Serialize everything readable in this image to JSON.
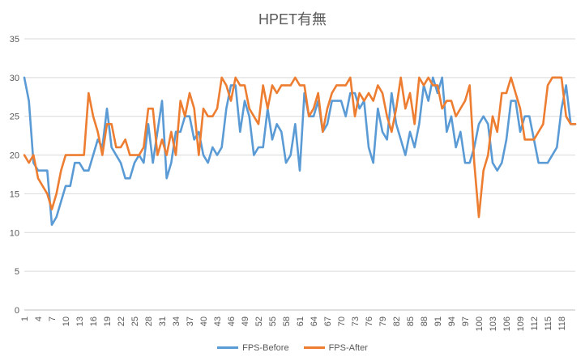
{
  "chart_data": {
    "type": "line",
    "title": "HPET有無",
    "ylim": [
      0,
      35
    ],
    "yticks": [
      0,
      5,
      10,
      15,
      20,
      25,
      30,
      35
    ],
    "x": [
      1,
      2,
      3,
      4,
      5,
      6,
      7,
      8,
      9,
      10,
      11,
      12,
      13,
      14,
      15,
      16,
      17,
      18,
      19,
      20,
      21,
      22,
      23,
      24,
      25,
      26,
      27,
      28,
      29,
      30,
      31,
      32,
      33,
      34,
      35,
      36,
      37,
      38,
      39,
      40,
      41,
      42,
      43,
      44,
      45,
      46,
      47,
      48,
      49,
      50,
      51,
      52,
      53,
      54,
      55,
      56,
      57,
      58,
      59,
      60,
      61,
      62,
      63,
      64,
      65,
      66,
      67,
      68,
      69,
      70,
      71,
      72,
      73,
      74,
      75,
      76,
      77,
      78,
      79,
      80,
      81,
      82,
      83,
      84,
      85,
      86,
      87,
      88,
      89,
      90,
      91,
      92,
      93,
      94,
      95,
      96,
      97,
      98,
      99,
      100,
      101,
      102,
      103,
      104,
      105,
      106,
      107,
      108,
      109,
      110,
      111,
      112,
      113,
      114,
      115,
      116,
      117,
      118,
      119,
      120,
      121
    ],
    "xticks": [
      "1",
      "4",
      "7",
      "10",
      "13",
      "16",
      "19",
      "22",
      "25",
      "28",
      "31",
      "34",
      "37",
      "40",
      "43",
      "46",
      "49",
      "52",
      "55",
      "58",
      "61",
      "64",
      "67",
      "70",
      "73",
      "76",
      "79",
      "82",
      "85",
      "88",
      "91",
      "94",
      "97",
      "100",
      "103",
      "106",
      "109",
      "112",
      "115",
      "118"
    ],
    "grid": true,
    "legend_position": "bottom",
    "series": [
      {
        "name": "FPS-Before",
        "color": "#5B9BD5",
        "values": [
          30,
          27,
          19,
          18,
          18,
          18,
          11,
          12,
          14,
          16,
          16,
          19,
          19,
          18,
          18,
          20,
          22,
          21,
          26,
          21,
          20,
          19,
          17,
          17,
          19,
          20,
          19,
          24,
          19,
          23,
          27,
          17,
          19,
          23,
          23,
          25,
          25,
          22,
          23,
          20,
          19,
          21,
          20,
          21,
          26,
          29,
          29,
          23,
          27,
          25,
          20,
          21,
          21,
          26,
          22,
          24,
          23,
          19,
          20,
          24,
          18,
          28,
          25,
          25,
          27,
          23,
          24,
          27,
          27,
          27,
          25,
          28,
          28,
          26,
          27,
          21,
          19,
          26,
          23,
          22,
          28,
          24,
          22,
          20,
          23,
          21,
          24,
          29,
          27,
          30,
          28,
          30,
          23,
          25,
          21,
          23,
          19,
          19,
          21,
          24,
          25,
          24,
          19,
          18,
          19,
          22,
          27,
          27,
          23,
          25,
          25,
          22,
          19,
          19,
          19,
          20,
          21,
          26,
          29,
          24,
          24
        ]
      },
      {
        "name": "FPS-After",
        "color": "#ED7D31",
        "values": [
          20,
          19,
          20,
          17,
          16,
          15,
          13,
          15,
          18,
          20,
          20,
          20,
          20,
          20,
          28,
          25,
          23,
          20,
          24,
          24,
          21,
          21,
          22,
          20,
          20,
          20,
          21,
          26,
          26,
          20,
          22,
          20,
          23,
          20,
          27,
          25,
          28,
          26,
          20,
          26,
          25,
          25,
          26,
          30,
          29,
          27,
          30,
          29,
          29,
          26,
          25,
          24,
          29,
          26,
          29,
          28,
          29,
          29,
          29,
          30,
          29,
          29,
          25,
          26,
          28,
          23,
          26,
          28,
          29,
          29,
          29,
          30,
          25,
          28,
          27,
          28,
          27,
          29,
          28,
          25,
          23,
          26,
          30,
          26,
          28,
          24,
          30,
          29,
          30,
          29,
          29,
          26,
          27,
          27,
          25,
          26,
          27,
          29,
          19,
          12,
          18,
          20,
          25,
          23,
          28,
          28,
          30,
          28,
          26,
          22,
          22,
          22,
          23,
          24,
          29,
          30,
          30,
          30,
          25,
          24,
          24
        ]
      }
    ]
  }
}
